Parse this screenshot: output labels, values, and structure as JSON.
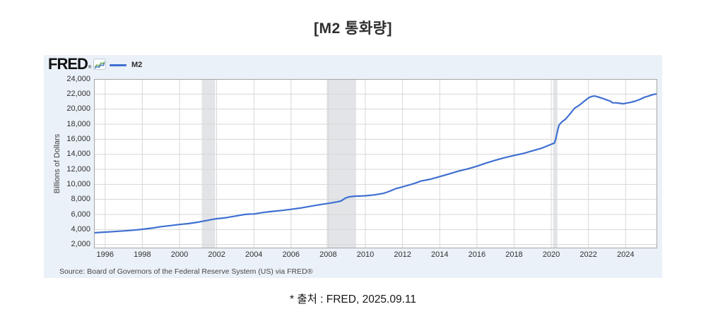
{
  "page": {
    "title": "[M2 통화량]",
    "caption": "* 출처 : FRED, 2025.09.11"
  },
  "chart": {
    "brand": "FRED",
    "brand_reg": "®",
    "legend_label": "M2",
    "source": "Source: Board of Governors of the Federal Reserve System (US) via FRED®",
    "colors": {
      "card_bg": "#ebf1f8",
      "plot_bg": "#ffffff",
      "line": "#3f6fd1",
      "grid": "#d7d7d7",
      "recession_band": "#e2e4e7",
      "plot_border": "#a6a6a6",
      "tick_text": "#303030"
    }
  },
  "chart_data": {
    "type": "line",
    "title": "M2",
    "xlabel": "",
    "ylabel": "Billions of Dollars",
    "xlim": [
      1995.4,
      2025.7
    ],
    "ylim": [
      1500,
      24000
    ],
    "x_ticks": [
      1996,
      1998,
      2000,
      2002,
      2004,
      2006,
      2008,
      2010,
      2012,
      2014,
      2016,
      2018,
      2020,
      2022,
      2024
    ],
    "y_ticks": [
      2000,
      4000,
      6000,
      8000,
      10000,
      12000,
      14000,
      16000,
      18000,
      20000,
      22000,
      24000
    ],
    "grid": true,
    "legend_position": "top-left",
    "recession_bands": [
      [
        2001.2,
        2001.92
      ],
      [
        2007.92,
        2009.5
      ],
      [
        2020.1,
        2020.33
      ]
    ],
    "series": [
      {
        "name": "M2",
        "units": "Billions of Dollars",
        "x": [
          1995.4,
          1995.75,
          1996.0,
          1996.5,
          1997.0,
          1997.5,
          1998.0,
          1998.5,
          1999.0,
          1999.5,
          2000.0,
          2000.5,
          2001.0,
          2001.25,
          2001.5,
          2001.75,
          2002.0,
          2002.5,
          2003.0,
          2003.5,
          2003.75,
          2004.0,
          2004.5,
          2005.0,
          2005.5,
          2006.0,
          2006.5,
          2007.0,
          2007.5,
          2008.0,
          2008.5,
          2008.7,
          2008.9,
          2009.1,
          2009.4,
          2009.75,
          2010.0,
          2010.5,
          2011.0,
          2011.3,
          2011.6,
          2011.9,
          2012.25,
          2012.6,
          2013.0,
          2013.5,
          2014.0,
          2014.5,
          2015.0,
          2015.5,
          2016.0,
          2016.5,
          2017.0,
          2017.5,
          2018.0,
          2018.5,
          2019.0,
          2019.5,
          2020.0,
          2020.17,
          2020.25,
          2020.33,
          2020.42,
          2020.58,
          2020.75,
          2021.0,
          2021.25,
          2021.5,
          2021.75,
          2022.0,
          2022.17,
          2022.33,
          2022.5,
          2022.75,
          2023.0,
          2023.17,
          2023.3,
          2023.5,
          2023.75,
          2023.9,
          2024.0,
          2024.25,
          2024.5,
          2024.75,
          2025.0,
          2025.25,
          2025.5,
          2025.7
        ],
        "y": [
          3560,
          3620,
          3660,
          3730,
          3820,
          3910,
          4030,
          4180,
          4380,
          4520,
          4670,
          4790,
          4980,
          5100,
          5210,
          5330,
          5440,
          5570,
          5780,
          6000,
          6050,
          6070,
          6260,
          6410,
          6530,
          6680,
          6850,
          7070,
          7280,
          7470,
          7680,
          7800,
          8150,
          8330,
          8430,
          8460,
          8480,
          8610,
          8820,
          9080,
          9400,
          9600,
          9840,
          10100,
          10440,
          10690,
          11030,
          11380,
          11760,
          12060,
          12410,
          12830,
          13210,
          13560,
          13850,
          14110,
          14470,
          14820,
          15330,
          15500,
          16080,
          17020,
          17900,
          18330,
          18630,
          19340,
          20110,
          20500,
          21000,
          21500,
          21680,
          21740,
          21640,
          21430,
          21210,
          21060,
          20840,
          20830,
          20760,
          20710,
          20780,
          20890,
          21050,
          21270,
          21560,
          21760,
          21960,
          22020
        ]
      }
    ]
  }
}
